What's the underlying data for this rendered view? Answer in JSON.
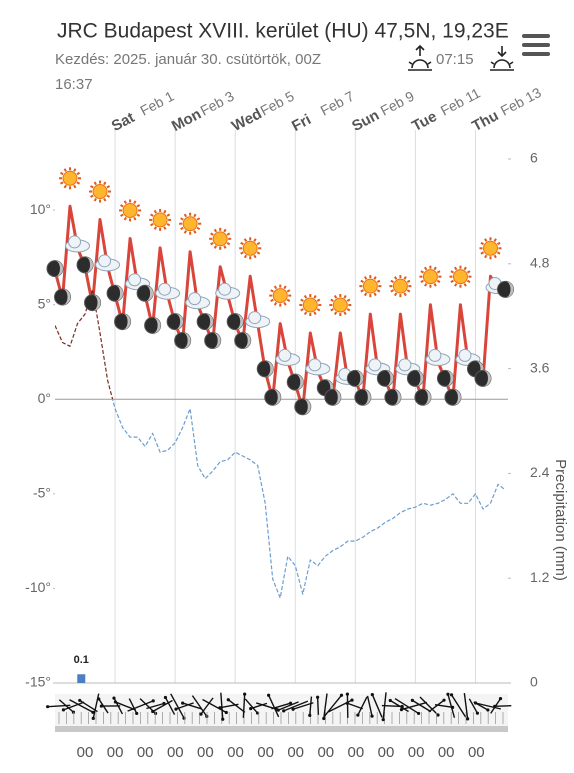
{
  "chart_data": {
    "type": "line",
    "title": "JRC Budapest XVIII. kerület (HU) 47,5N, 19,23E",
    "subtitle": "Kezdés: 2025. január 30. csütörtök, 00Z",
    "sunrise": "07:15",
    "sunset": "16:37",
    "y2_label": "Precipitation (mm)",
    "xlim": [
      0,
      362
    ],
    "xticks": [
      {
        "value": 48,
        "day": "Sat",
        "date": "Feb 1"
      },
      {
        "value": 96,
        "day": "Mon",
        "date": "Feb 3"
      },
      {
        "value": 144,
        "day": "Wed",
        "date": "Feb 5"
      },
      {
        "value": 192,
        "day": "Fri",
        "date": "Feb 7"
      },
      {
        "value": 240,
        "day": "Sun",
        "date": "Feb 9"
      },
      {
        "value": 288,
        "day": "Tue",
        "date": "Feb 11"
      },
      {
        "value": 336,
        "day": "Thu",
        "date": "Feb 13"
      }
    ],
    "hour_labels": [
      "00",
      "00",
      "00",
      "00",
      "00",
      "00",
      "00",
      "00",
      "00",
      "00",
      "00",
      "00",
      "00",
      "00"
    ],
    "ylim": [
      -15,
      12.7
    ],
    "yticks": [
      {
        "value": 10,
        "label": "10°"
      },
      {
        "value": 5,
        "label": "5°"
      },
      {
        "value": 0,
        "label": "0°"
      },
      {
        "value": -5,
        "label": "-5°"
      },
      {
        "value": -10,
        "label": "-10°"
      },
      {
        "value": -15,
        "label": "-15°"
      }
    ],
    "y2lim": [
      0,
      6
    ],
    "y2ticks": [
      6,
      4.8,
      3.6,
      2.4,
      1.2,
      0
    ],
    "x": [
      0,
      6,
      12,
      18,
      24,
      30,
      36,
      42,
      48,
      54,
      60,
      66,
      72,
      78,
      84,
      90,
      96,
      102,
      108,
      114,
      120,
      126,
      132,
      138,
      144,
      150,
      156,
      162,
      168,
      174,
      180,
      186,
      192,
      198,
      204,
      210,
      216,
      222,
      228,
      234,
      240,
      246,
      252,
      258,
      264,
      270,
      276,
      282,
      288,
      294,
      300,
      306,
      312,
      318,
      324,
      330,
      336,
      342,
      348,
      354,
      360
    ],
    "series": [
      {
        "color": "#d9453b",
        "color_below_zero": "#6aaad8",
        "dashed": false,
        "values": [
          6.8,
          5.3,
          10.2,
          8.0,
          7.0,
          5.0,
          9.5,
          7.0,
          5.5,
          4.0,
          8.5,
          6.0,
          5.5,
          3.8,
          8.0,
          5.5,
          4.0,
          3.0,
          7.8,
          5.0,
          4.0,
          3.0,
          7.0,
          5.5,
          4.0,
          3.0,
          6.5,
          4.0,
          1.5,
          0.0,
          4.0,
          2.0,
          0.8,
          -0.5,
          3.5,
          1.5,
          0.5,
          0.0,
          3.5,
          1.0,
          1.0,
          0.0,
          4.5,
          1.5,
          1.0,
          0.0,
          4.5,
          1.5,
          1.0,
          0.0,
          5.0,
          2.0,
          1.0,
          0.0,
          5.0,
          2.0,
          1.5,
          1.0,
          6.5,
          5.8,
          5.7
        ]
      },
      {
        "color": "#7a2a1a",
        "color_below_zero": "#6a9ed0",
        "dashed": true,
        "values": [
          3.9,
          3.0,
          2.8,
          4.0,
          4.5,
          5.8,
          3.5,
          1.0,
          -0.5,
          -1.5,
          -2.0,
          -2.0,
          -2.5,
          -1.8,
          -2.8,
          -2.7,
          -2.3,
          -1.5,
          -0.5,
          -3.5,
          -4.2,
          -3.8,
          -3.3,
          -3.2,
          -2.8,
          -3.0,
          -3.2,
          -3.5,
          -5.5,
          -9.5,
          -10.5,
          -8.3,
          -8.8,
          -10.3,
          -8.5,
          -8.8,
          -8.3,
          -8.0,
          -7.8,
          -7.5,
          -7.5,
          -7.3,
          -7.0,
          -6.8,
          -6.5,
          -6.3,
          -6.0,
          -5.8,
          -5.7,
          -5.5,
          -5.6,
          -5.5,
          -5.3,
          -5.0,
          -5.5,
          -5.5,
          -5.0,
          -5.8,
          -5.5,
          -4.5,
          -4.8
        ]
      }
    ],
    "precipitation": {
      "color": "#4a7fc0",
      "x": [
        21
      ],
      "values": [
        0.1
      ],
      "value_labels": [
        "0.1"
      ],
      "axis": "y2"
    }
  }
}
